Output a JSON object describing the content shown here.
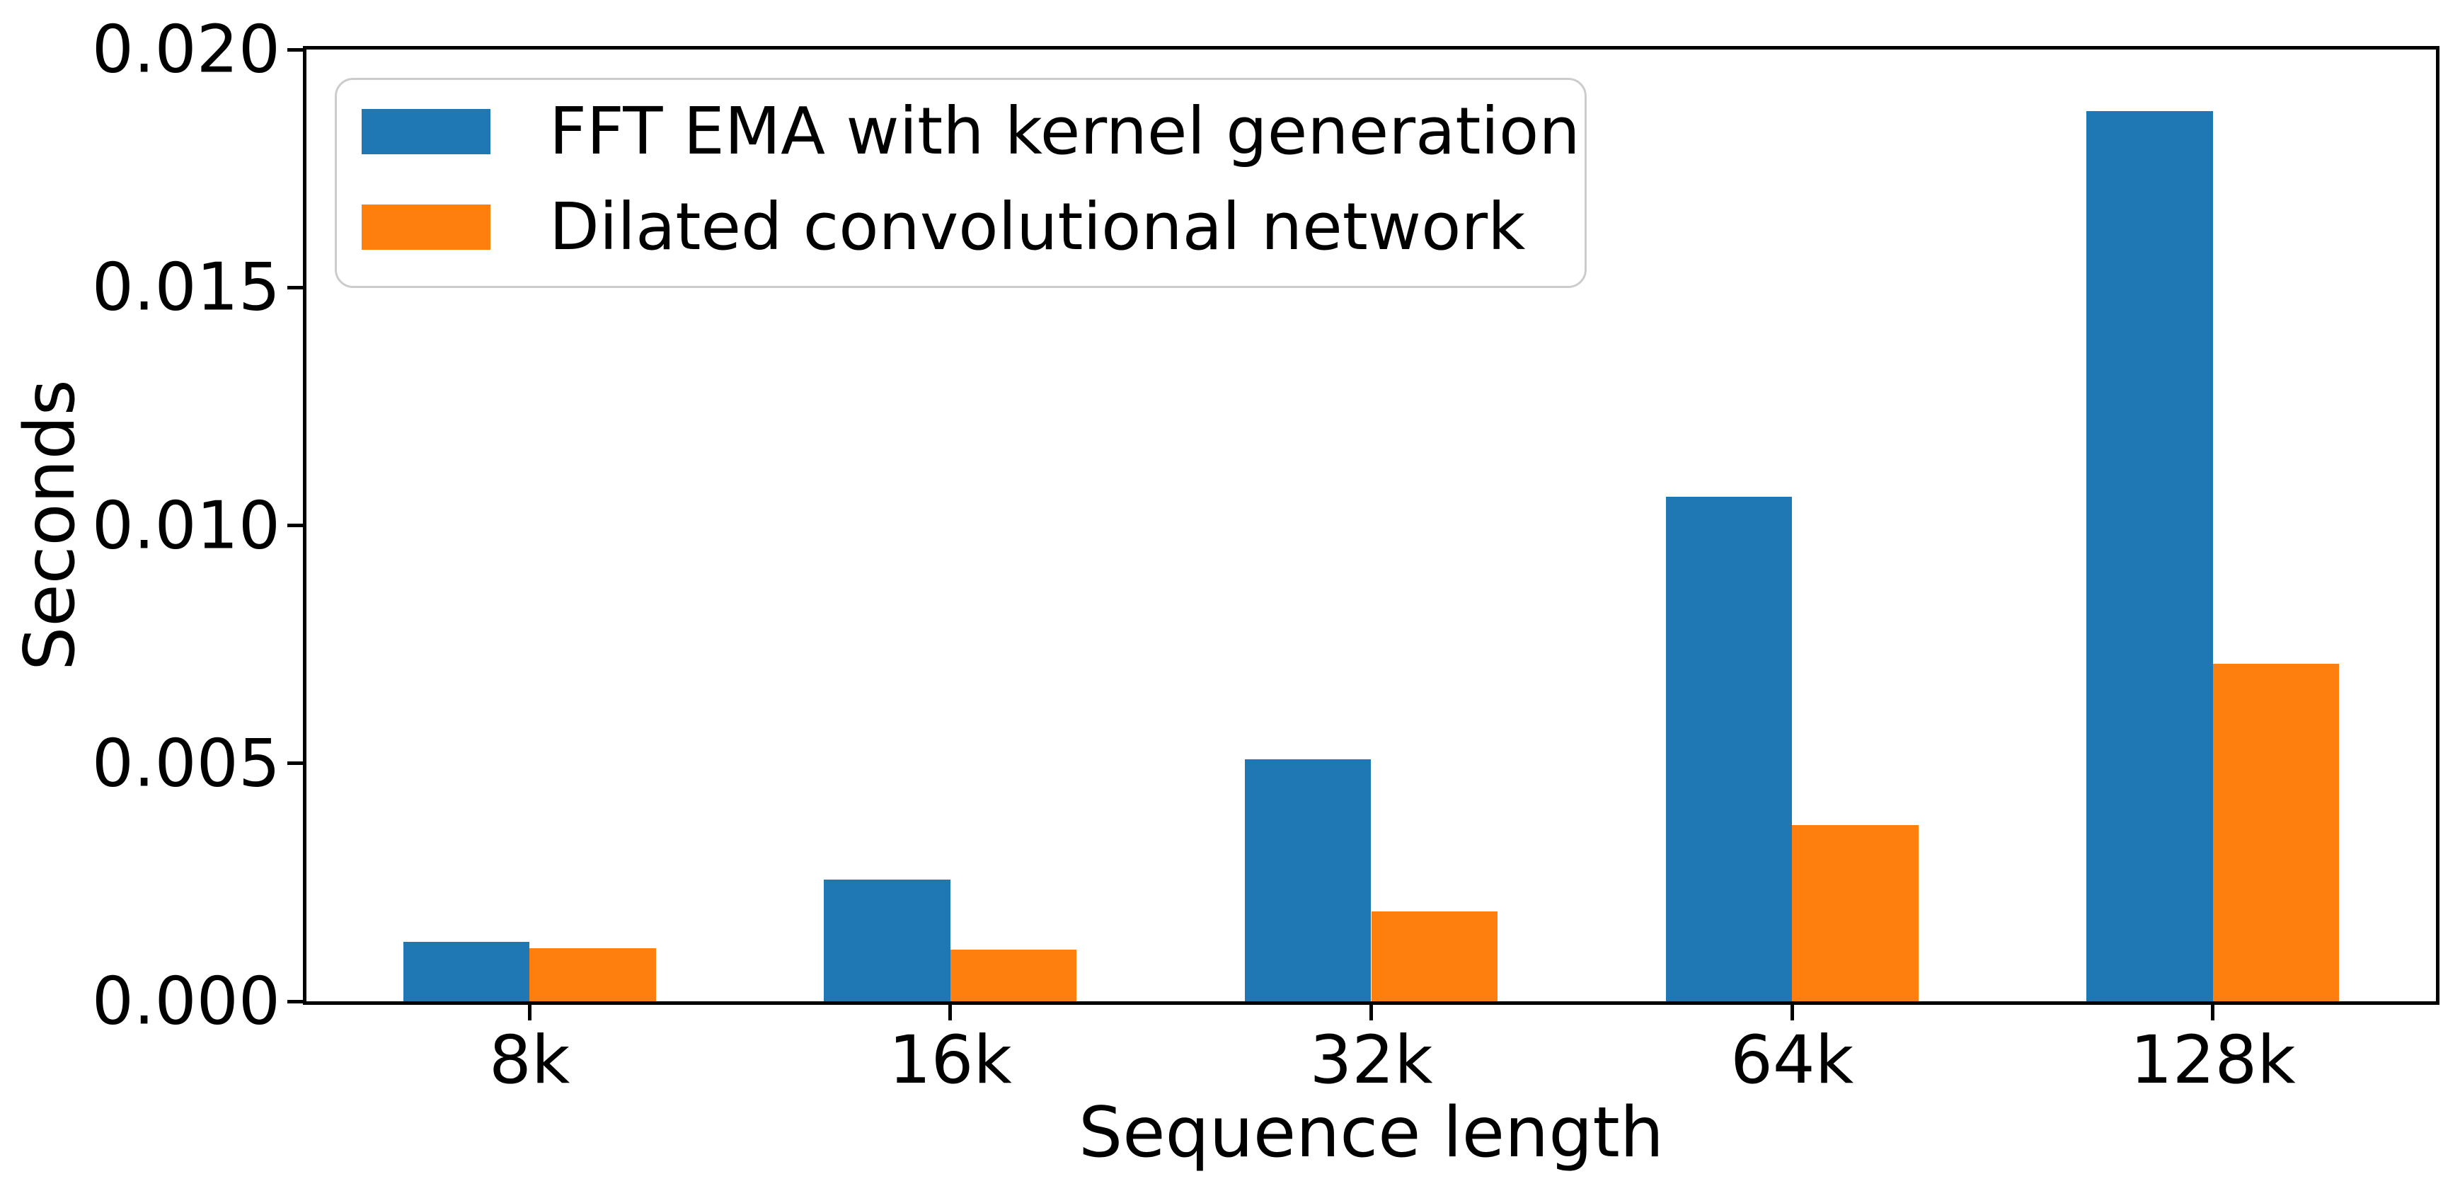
{
  "chart_data": {
    "type": "bar",
    "title": "",
    "categories": [
      "8k",
      "16k",
      "32k",
      "64k",
      "128k"
    ],
    "series": [
      {
        "name": "FFT EMA with kernel generation",
        "color": "#1f77b4",
        "offset": -0.15,
        "values": [
          0.00125,
          0.00256,
          0.00508,
          0.0106,
          0.0187
        ]
      },
      {
        "name": "Dilated convolutional network",
        "color": "#ff7f0e",
        "offset": 0.15,
        "values": [
          0.00112,
          0.00109,
          0.00189,
          0.00371,
          0.0071
        ]
      }
    ],
    "bar_width": 0.3,
    "xlabel": "Sequence length",
    "ylabel": "Seconds",
    "xlim": [
      -0.53,
      4.53
    ],
    "ylim": [
      0,
      0.02
    ],
    "yticks": [
      {
        "value": 0,
        "label": "0.000"
      },
      {
        "value": 0.005,
        "label": "0.005"
      },
      {
        "value": 0.01,
        "label": "0.010"
      },
      {
        "value": 0.015,
        "label": "0.015"
      },
      {
        "value": 0.02,
        "label": "0.020"
      }
    ],
    "grid": false,
    "legend_position": "upper-left"
  }
}
